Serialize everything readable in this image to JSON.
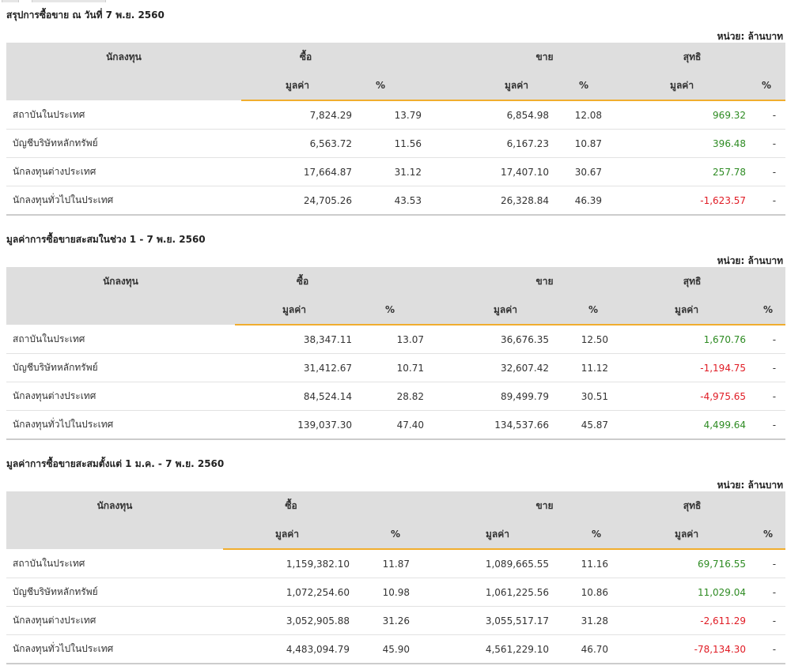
{
  "unit_label": "หน่วย: ล้านบาท",
  "headers": {
    "investor": "นักลงทุน",
    "buy": "ซื้อ",
    "sell": "ขาย",
    "net": "สุทธิ",
    "value": "มูลค่า",
    "percent": "%"
  },
  "colors": {
    "accent": "#f0ad2e",
    "positive": "#2e8b23",
    "negative": "#e01b24",
    "header_bg": "#dedede"
  },
  "sections": [
    {
      "title": "สรุปการซื้อขาย ณ วันที่ 7 พ.ย. 2560",
      "rows": [
        {
          "investor": "สถาบันในประเทศ",
          "buy_value": "7,824.29",
          "buy_pct": "13.79",
          "sell_value": "6,854.98",
          "sell_pct": "12.08",
          "net_value": "969.32",
          "net_pct": "-"
        },
        {
          "investor": "บัญชีบริษัทหลักทรัพย์",
          "buy_value": "6,563.72",
          "buy_pct": "11.56",
          "sell_value": "6,167.23",
          "sell_pct": "10.87",
          "net_value": "396.48",
          "net_pct": "-"
        },
        {
          "investor": "นักลงทุนต่างประเทศ",
          "buy_value": "17,664.87",
          "buy_pct": "31.12",
          "sell_value": "17,407.10",
          "sell_pct": "30.67",
          "net_value": "257.78",
          "net_pct": "-"
        },
        {
          "investor": "นักลงทุนทั่วไปในประเทศ",
          "buy_value": "24,705.26",
          "buy_pct": "43.53",
          "sell_value": "26,328.84",
          "sell_pct": "46.39",
          "net_value": "-1,623.57",
          "net_pct": "-"
        }
      ]
    },
    {
      "title": "มูลค่าการซื้อขายสะสมในช่วง 1 - 7 พ.ย. 2560",
      "rows": [
        {
          "investor": "สถาบันในประเทศ",
          "buy_value": "38,347.11",
          "buy_pct": "13.07",
          "sell_value": "36,676.35",
          "sell_pct": "12.50",
          "net_value": "1,670.76",
          "net_pct": "-"
        },
        {
          "investor": "บัญชีบริษัทหลักทรัพย์",
          "buy_value": "31,412.67",
          "buy_pct": "10.71",
          "sell_value": "32,607.42",
          "sell_pct": "11.12",
          "net_value": "-1,194.75",
          "net_pct": "-"
        },
        {
          "investor": "นักลงทุนต่างประเทศ",
          "buy_value": "84,524.14",
          "buy_pct": "28.82",
          "sell_value": "89,499.79",
          "sell_pct": "30.51",
          "net_value": "-4,975.65",
          "net_pct": "-"
        },
        {
          "investor": "นักลงทุนทั่วไปในประเทศ",
          "buy_value": "139,037.30",
          "buy_pct": "47.40",
          "sell_value": "134,537.66",
          "sell_pct": "45.87",
          "net_value": "4,499.64",
          "net_pct": "-"
        }
      ]
    },
    {
      "title": "มูลค่าการซื้อขายสะสมตั้งแต่ 1 ม.ค. - 7 พ.ย. 2560",
      "rows": [
        {
          "investor": "สถาบันในประเทศ",
          "buy_value": "1,159,382.10",
          "buy_pct": "11.87",
          "sell_value": "1,089,665.55",
          "sell_pct": "11.16",
          "net_value": "69,716.55",
          "net_pct": "-"
        },
        {
          "investor": "บัญชีบริษัทหลักทรัพย์",
          "buy_value": "1,072,254.60",
          "buy_pct": "10.98",
          "sell_value": "1,061,225.56",
          "sell_pct": "10.86",
          "net_value": "11,029.04",
          "net_pct": "-"
        },
        {
          "investor": "นักลงทุนต่างประเทศ",
          "buy_value": "3,052,905.88",
          "buy_pct": "31.26",
          "sell_value": "3,055,517.17",
          "sell_pct": "31.28",
          "net_value": "-2,611.29",
          "net_pct": "-"
        },
        {
          "investor": "นักลงทุนทั่วไปในประเทศ",
          "buy_value": "4,483,094.79",
          "buy_pct": "45.90",
          "sell_value": "4,561,229.10",
          "sell_pct": "46.70",
          "net_value": "-78,134.30",
          "net_pct": "-"
        }
      ]
    }
  ]
}
